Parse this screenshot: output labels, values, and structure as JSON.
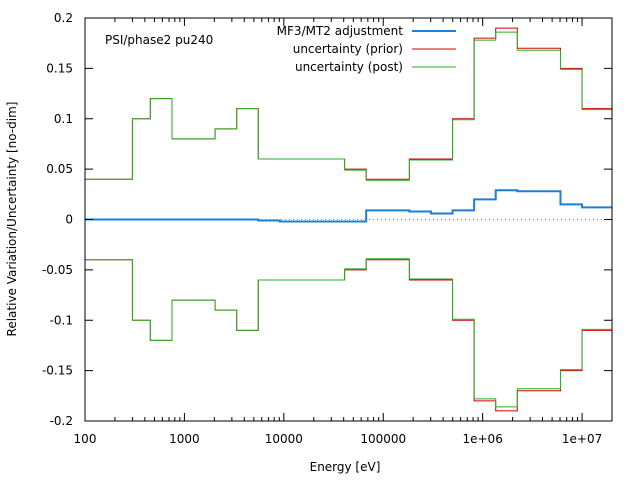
{
  "chart_data": {
    "type": "line",
    "title": "",
    "annotation": "PSI/phase2 pu240",
    "xlabel": "Energy [eV]",
    "ylabel": "Relative Variation/Uncertainty [no-dim]",
    "xscale": "log",
    "xlim": [
      100,
      20000000
    ],
    "ylim": [
      -0.2,
      0.2
    ],
    "x_ticks": [
      {
        "value": 100,
        "label": "100"
      },
      {
        "value": 1000,
        "label": "1000"
      },
      {
        "value": 10000,
        "label": "10000"
      },
      {
        "value": 100000,
        "label": "100000"
      },
      {
        "value": 1000000,
        "label": "1e+06"
      },
      {
        "value": 10000000,
        "label": "1e+07"
      }
    ],
    "y_ticks": [
      {
        "value": 0.2,
        "label": "0.2"
      },
      {
        "value": 0.15,
        "label": "0.15"
      },
      {
        "value": 0.1,
        "label": "0.1"
      },
      {
        "value": 0.05,
        "label": "0.05"
      },
      {
        "value": 0,
        "label": "0"
      },
      {
        "value": -0.05,
        "label": "-0.05"
      },
      {
        "value": -0.1,
        "label": "-0.1"
      },
      {
        "value": -0.15,
        "label": "-0.15"
      },
      {
        "value": -0.2,
        "label": "-0.2"
      }
    ],
    "zero_line": true,
    "grid": false,
    "legend_position": "top-right",
    "bin_edges": [
      100,
      300,
      454,
      750,
      2035,
      3355,
      5531,
      9119,
      15034,
      40868,
      67379,
      183156,
      301974,
      497871,
      820850,
      1353353,
      2231302,
      3678794,
      6065307,
      10000000,
      20000000
    ],
    "series": [
      {
        "name": "MF3/MT2 adjustment",
        "color": "#1a7fd6",
        "style": "step",
        "values": [
          0,
          0,
          0,
          0,
          0,
          0,
          -0.001,
          -0.002,
          -0.002,
          -0.002,
          0.009,
          0.008,
          0.006,
          0.009,
          0.02,
          0.029,
          0.028,
          0.028,
          0.015,
          0.012
        ]
      },
      {
        "name": "uncertainty (prior)",
        "color": "#d10000",
        "style": "step_band",
        "values": [
          0.04,
          0.1,
          0.12,
          0.08,
          0.09,
          0.11,
          0.06,
          0.06,
          0.06,
          0.05,
          0.04,
          0.06,
          0.06,
          0.1,
          0.18,
          0.19,
          0.17,
          0.17,
          0.15,
          0.11
        ]
      },
      {
        "name": "uncertainty (post)",
        "color": "#22b222",
        "style": "step_band",
        "values": [
          0.04,
          0.1,
          0.12,
          0.08,
          0.09,
          0.11,
          0.06,
          0.06,
          0.06,
          0.049,
          0.039,
          0.059,
          0.059,
          0.099,
          0.178,
          0.186,
          0.168,
          0.168,
          0.149,
          0.109
        ]
      }
    ]
  }
}
